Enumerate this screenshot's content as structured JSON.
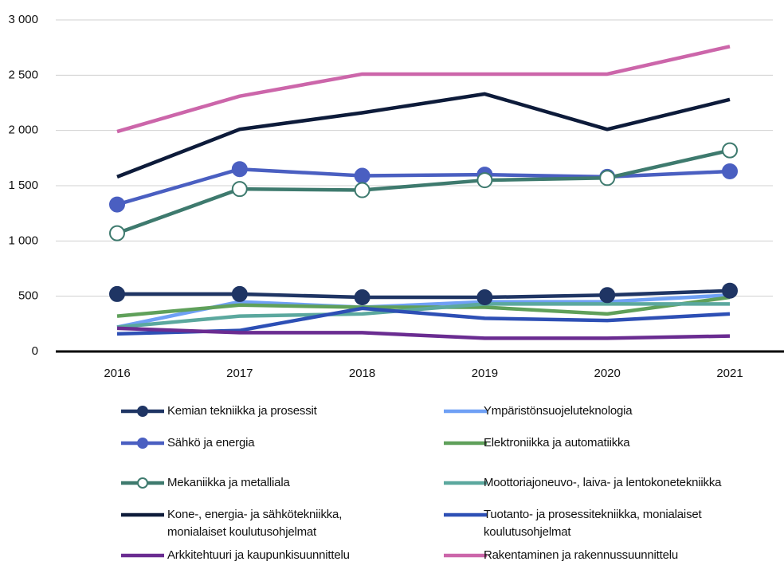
{
  "chart_data": {
    "type": "line",
    "categories": [
      "2016",
      "2017",
      "2018",
      "2019",
      "2020",
      "2021"
    ],
    "series": [
      {
        "name": "Kemian tekniikka ja prosessit",
        "color": "#1f3564",
        "marker": "filled",
        "values": [
          520,
          520,
          490,
          490,
          510,
          550
        ]
      },
      {
        "name": "Ympäristönsuojeluteknologia",
        "color": "#6fa0f5",
        "values": [
          220,
          450,
          400,
          450,
          450,
          510
        ]
      },
      {
        "name": "Sähkö ja energia",
        "color": "#4a5fc1",
        "marker": "filled",
        "values": [
          1330,
          1650,
          1590,
          1600,
          1580,
          1630
        ]
      },
      {
        "name": "Elektroniikka ja automatiikka",
        "color": "#5fa05a",
        "values": [
          320,
          420,
          400,
          400,
          340,
          490
        ]
      },
      {
        "name": "Mekaniikka ja metalliala",
        "color": "#3e7a6e",
        "marker": "hollow",
        "values": [
          1070,
          1470,
          1460,
          1550,
          1570,
          1820
        ]
      },
      {
        "name": "Moottoriajoneuvo-, laiva- ja lentokonetekniikka",
        "color": "#5ba89e",
        "values": [
          220,
          320,
          340,
          430,
          430,
          430
        ]
      },
      {
        "name": "Kone-, energia- ja sähkötekniikka, monialaiset koulutusohjelmat",
        "color": "#0d1b3a",
        "values": [
          1580,
          2010,
          2160,
          2330,
          2010,
          2280
        ]
      },
      {
        "name": "Tuotanto- ja prosessitekniikka, monialaiset koulutusohjelmat",
        "color": "#2d4fb5",
        "values": [
          160,
          190,
          390,
          300,
          280,
          340
        ]
      },
      {
        "name": "Arkkitehtuuri ja kaupunkisuunnittelu",
        "color": "#6a2c91",
        "values": [
          210,
          170,
          170,
          120,
          120,
          140
        ]
      },
      {
        "name": "Rakentaminen ja rakennussuunnittelu",
        "color": "#cc66aa",
        "values": [
          1990,
          2310,
          2510,
          2510,
          2510,
          2760
        ]
      }
    ],
    "ylim": [
      0,
      3000
    ],
    "yticks": [
      0,
      500,
      {
        "value": 1000,
        "label": "1 000"
      },
      {
        "value": 1500,
        "label": "1 500"
      },
      {
        "value": 2000,
        "label": "2 000"
      },
      {
        "value": 2500,
        "label": "2 500"
      },
      {
        "value": 3000,
        "label": "3 000"
      }
    ],
    "grid": true
  }
}
